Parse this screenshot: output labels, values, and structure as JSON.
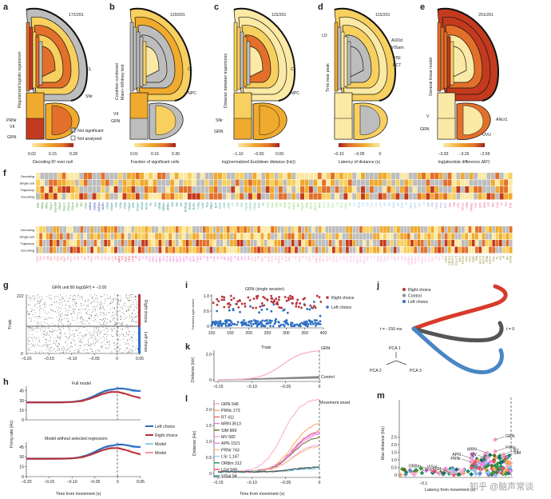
{
  "colors": {
    "cmap": [
      "#fbe9a6",
      "#f7d060",
      "#f0aa2e",
      "#e2702a",
      "#c43a1e",
      "#9e1f17"
    ],
    "not_significant": "#bdbdbd",
    "not_analysed": "#ffffff",
    "right_choice": "#b8343a",
    "left_choice": "#2e6fc2",
    "model_left": "#8fd0ea",
    "model_right": "#f19aa3",
    "control": "#808080"
  },
  "panels": {
    "a": {
      "letter": "a",
      "count": "172/201",
      "ylabel": "Regularized logistic regression",
      "ticks": [
        "0.02",
        "0.15",
        "0.28"
      ],
      "cbar_title": "Decoding R² over null",
      "labels": [
        "CL",
        "SNr",
        "PRNr",
        "VII",
        "GRN"
      ],
      "legend": [
        "Not significant",
        "Not analysed"
      ]
    },
    "b": {
      "letter": "b",
      "count": "120/201",
      "ylabel1": "Condition combined",
      "ylabel2": "Mann–Whitney test",
      "ticks": [
        "0.01",
        "0.16",
        "0.30"
      ],
      "cbar_title": "Fraction of significant cells",
      "labels": [
        "CL",
        "NPC",
        "VII",
        "GRN"
      ]
    },
    "c": {
      "letter": "c",
      "count": "115/201",
      "ylabel": "Distance between trajectories",
      "ticks": [
        "−1.10",
        "−0.50",
        "0.09"
      ],
      "cbar_title": "log(normalized Euclidean distance (Hz))",
      "labels": [
        "CL",
        "NPC",
        "SNr",
        "GRN"
      ]
    },
    "d": {
      "letter": "d",
      "count": "115/201",
      "ylabel": "Time near peak",
      "ticks": [
        "−0.10",
        "−0.05",
        "0"
      ],
      "cbar_title": "Latency of distance (s)",
      "labels": [
        "LD",
        "AUDd",
        "VISam",
        "VISl",
        "ECT"
      ]
    },
    "e": {
      "letter": "e",
      "count": "201/201",
      "ylabel": "General linear model",
      "ticks": [
        "−3.93",
        "−3.26",
        "−2.59"
      ],
      "cbar_title": "log(absolute difference ΔR²)",
      "labels": [
        "ANcr1",
        "V",
        "GRN",
        "UVU"
      ]
    }
  },
  "f": {
    "letter": "f",
    "row_labels": [
      "Decoding",
      "Single-cell",
      "Trajectory",
      "Encoding"
    ],
    "top_regions": [
      {
        "c": "#3a9a3a",
        "r": [
          "FRP",
          "MOp",
          "MOs",
          "SSp-n",
          "SSp-bfd",
          "SSp-ll",
          "SSp-m",
          "SSp-ul",
          "SSp-tr",
          "SSs",
          "GU",
          "VISC"
        ]
      },
      {
        "c": "#2b3aa8",
        "r": [
          "AUDd",
          "AUDp",
          "AUDpo",
          "AUDv"
        ]
      },
      {
        "c": "#1f8a8a",
        "r": [
          "VISal",
          "VISam",
          "VISl",
          "VISp",
          "VISpl",
          "VISpm",
          "VISli",
          "VISpor",
          "ACAd",
          "ACAv",
          "PL",
          "ILA",
          "ORBl",
          "ORBm",
          "ORBvl",
          "AId",
          "AIp",
          "AIv",
          "RSPagl",
          "RSPd",
          "RSPv",
          "VISa",
          "VISrl",
          "TEa",
          "PERI",
          "ECT"
        ]
      },
      {
        "c": "#62b8a8",
        "r": [
          "MOB",
          "AOB",
          "AON",
          "TT",
          "DP",
          "PIR",
          "NLOT",
          "COAa",
          "COAp",
          "PAA",
          "TR"
        ]
      },
      {
        "c": "#7ccf5a",
        "r": [
          "CA1",
          "CA2",
          "CA3",
          "DG",
          "SUB",
          "ProS",
          "HATA",
          "APr",
          "POST",
          "PRE",
          "ENTl",
          "ENTm",
          "PAR"
        ]
      },
      {
        "c": "#9adf8a",
        "r": [
          "CLA",
          "EPd",
          "EPv",
          "LA",
          "BLA",
          "BMA",
          "PA"
        ]
      },
      {
        "c": "#8cc8ee",
        "r": [
          "CP",
          "ACB",
          "FS",
          "OT",
          "LSc",
          "LSr",
          "LSv",
          "SF",
          "SH",
          "AAA",
          "BA",
          "CEA",
          "IA",
          "MEA",
          "GPe",
          "GPi",
          "SI"
        ]
      },
      {
        "c": "#a0a0e0",
        "r": [
          "MA",
          "MS",
          "NDB",
          "TRS",
          "BST"
        ]
      },
      {
        "c": "#f06080",
        "r": [
          "VAL",
          "VM",
          "VPL",
          "VPLpc",
          "VPM",
          "VPMpc",
          "PoT",
          "SPF",
          "SPA",
          "PP",
          "MG",
          "LGd",
          "LP",
          "PO",
          "POL"
        ]
      }
    ],
    "bottom_regions": [
      {
        "c": "#f48aa0",
        "r": [
          "SGN",
          "Eth",
          "AV",
          "AM",
          "IAD",
          "LD",
          "IMD",
          "MD",
          "SMT",
          "PR",
          "PVT",
          "PT",
          "RE",
          "Xi",
          "RH",
          "CM",
          "PCN",
          "CL",
          "PF",
          "PIL",
          "RT",
          "IGL",
          "LGv"
        ]
      },
      {
        "c": "#e8304a",
        "r": [
          "LH",
          "MPO",
          "PS",
          "PVH",
          "LPO",
          "LHA",
          "ZI"
        ]
      },
      {
        "c": "#f070d8",
        "r": [
          "SCs",
          "IC",
          "NB",
          "SAG",
          "PBG",
          "SCm",
          "MRN",
          "SNr",
          "SCig",
          "PAG",
          "APN",
          "MPT",
          "NOT",
          "NPC",
          "OP",
          "PPT",
          "RPF",
          "CUN",
          "RN",
          "III",
          "EW",
          "IV",
          "VTN",
          "AT",
          "LT",
          "MT",
          "SNc",
          "PPN",
          "IF",
          "IPN",
          "RL",
          "CLI",
          "DR"
        ]
      },
      {
        "c": "#f5a0c0",
        "r": [
          "NLL",
          "PSV",
          "PB",
          "SOC",
          "B",
          "DTN",
          "PCG",
          "PG",
          "PRNc",
          "SG",
          "SUT",
          "TRN",
          "V",
          "P5",
          "PC5",
          "I5",
          "CS",
          "LDT",
          "NI",
          "PRNr",
          "RPO",
          "SLC",
          "SLD"
        ]
      },
      {
        "c": "#f8b0d8",
        "r": [
          "CN",
          "DCO",
          "VCO",
          "CU",
          "GR",
          "ECU",
          "NTB",
          "NTS",
          "SPVC",
          "SPVI",
          "SPVO",
          "Pa5",
          "VI",
          "VII",
          "AMB",
          "DMX",
          "GRN",
          "ICB",
          "IO",
          "IRN",
          "ISN",
          "LIN",
          "LRN",
          "MARN",
          "MDRN",
          "PARN",
          "PAS",
          "PGRN",
          "PHY",
          "PPY",
          "VNC",
          "XII",
          "INV",
          "AP"
        ]
      },
      {
        "c": "#8a8a30",
        "r": [
          "LING",
          "CENT2",
          "CENT3",
          "CUL4,5",
          "DEC",
          "FOTU",
          "PYR",
          "UVU",
          "NOD",
          "SIM",
          "ANcr1",
          "ANcr2",
          "PRM",
          "COPY",
          "PFL",
          "FL",
          "FN",
          "IP",
          "DN",
          "VeCB"
        ]
      }
    ]
  },
  "g": {
    "letter": "g",
    "title": "GRN unit 80 log(ΔR²) = −3.00",
    "ylabel": "Trials",
    "yticks": [
      "0",
      "222"
    ],
    "xticks": [
      "−0.20",
      "−0.15",
      "−0.10",
      "−0.05",
      "0",
      "0.05"
    ],
    "right": "Right choice",
    "left": "Left choice"
  },
  "h": {
    "letter": "h",
    "title1": "Full model",
    "title2": "Model without selected regressors",
    "ylabel": "Firing rate (Hz)",
    "yticks": [
      "0",
      "15",
      "30",
      "45"
    ],
    "xticks": [
      "−0.20",
      "−0.15",
      "−0.10",
      "−0.05",
      "0",
      "0.05"
    ],
    "xlabel": "Time from movement (s)",
    "legend": [
      "Left choice",
      "Right choice",
      "Model",
      "Model"
    ]
  },
  "i": {
    "letter": "i",
    "title": "GRN (single session)",
    "ylabel": "Predicted right choice",
    "yticks": [
      "0",
      "0.5",
      "1.0"
    ],
    "xticks": [
      "100",
      "150",
      "200",
      "250",
      "300",
      "350",
      "400"
    ],
    "legend": [
      "Right choice",
      "Left choice"
    ]
  },
  "k": {
    "letter": "k",
    "title": "Trials",
    "ylabel": "Distance (Hz)",
    "yticks": [
      "0",
      "2.0"
    ],
    "xticks": [
      "−0.15",
      "−0.10",
      "−0.05",
      "0"
    ],
    "labels": [
      "GRN",
      "Control"
    ]
  },
  "l": {
    "letter": "l",
    "ylabel": "Distance (Hz)",
    "yticks": [
      "0",
      "0.5",
      "1.0",
      "1.5",
      "2.0"
    ],
    "xticks": [
      "−0.15",
      "−0.10",
      "−0.05",
      "0"
    ],
    "xlabel": "Time from movement (s)",
    "onset": "Movement onset",
    "series": [
      {
        "name": "GRN 548",
        "c": "#f8a8d0",
        "end": 2.32
      },
      {
        "name": "PRNc 273",
        "c": "#f5a860",
        "end": 1.6
      },
      {
        "name": "RT 411",
        "c": "#f06a6a",
        "end": 1.35
      },
      {
        "name": "MRN 3613",
        "c": "#e870e0",
        "end": 1.3
      },
      {
        "name": "SIM 869",
        "c": "#6a6a20",
        "end": 1.15
      },
      {
        "name": "MV 682",
        "c": "#f0a0e0",
        "end": 0.9
      },
      {
        "name": "APN 1521",
        "c": "#f080f0",
        "end": 1.25
      },
      {
        "name": "PRNr 743",
        "c": "#f8c080",
        "end": 0.85
      },
      {
        "name": "LSr 1,147",
        "c": "#90d0f0",
        "end": 0.1
      },
      {
        "name": "ORBm 312",
        "c": "#20906a",
        "end": 0.15
      },
      {
        "name": "LGd 549",
        "c": "#f05060",
        "end": 0.15
      },
      {
        "name": "VISal 94",
        "c": "#107070",
        "end": 0.15
      }
    ]
  },
  "j": {
    "letter": "j",
    "legend": [
      "Right choice",
      "Control",
      "Left choice"
    ],
    "t_start": "t = −150 ms",
    "t_end": "t = 0",
    "pca": [
      "PCA 1",
      "PCA 2",
      "PCA 3"
    ]
  },
  "m": {
    "letter": "m",
    "ylabel": "Max distance (Hz)",
    "yticks": [
      "0",
      "0.5",
      "1.0",
      "1.5",
      "2.0",
      "2.5"
    ],
    "xlabel": "Latency from movement (s)",
    "xtick": "−0.1",
    "points": [
      [
        "GRN",
        -0.02,
        2.32
      ],
      [
        "PRNc",
        -0.02,
        1.55
      ],
      [
        "RT",
        -0.01,
        1.35
      ],
      [
        "MRN",
        -0.03,
        1.45
      ],
      [
        "MV",
        -0.03,
        1.1
      ],
      [
        "SIM",
        -0.01,
        1.2
      ],
      [
        "APN",
        -0.05,
        1.1
      ],
      [
        "PRNr",
        -0.05,
        0.85
      ],
      [
        "ORBm",
        -0.1,
        0.35
      ],
      [
        "VISal",
        -0.08,
        0.3
      ],
      [
        "LSr",
        -0.09,
        0.1
      ],
      [
        "LGd",
        -0.075,
        0.15
      ]
    ]
  },
  "watermark": "知乎 @脑声常谈"
}
